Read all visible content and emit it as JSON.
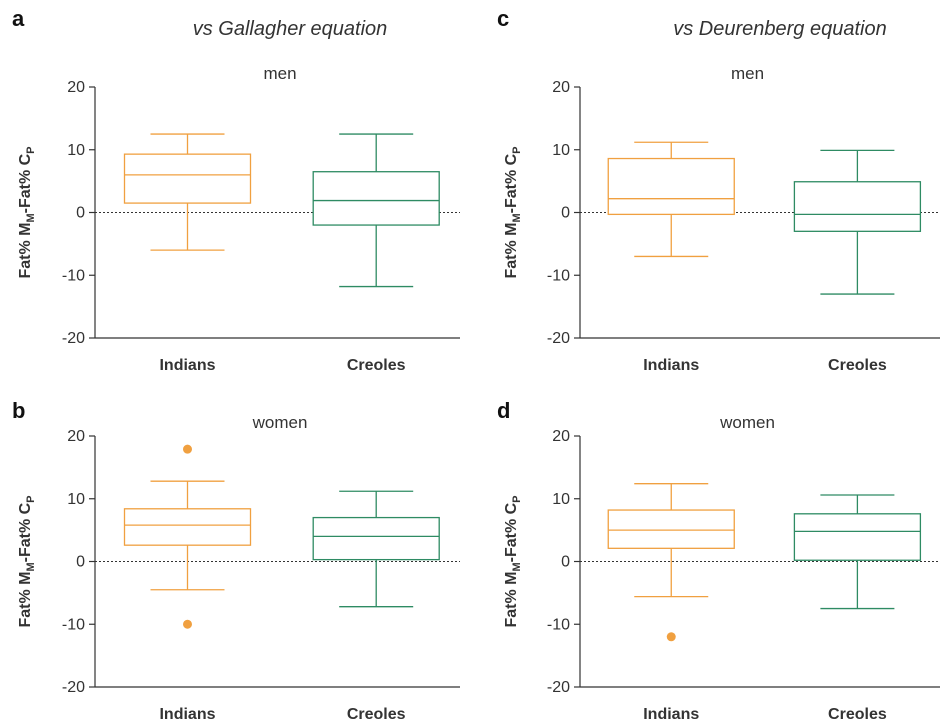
{
  "figure": {
    "column_titles": [
      "vs Gallagher equation",
      "vs Deurenberg equation"
    ],
    "colors": {
      "Indians": "#f0a040",
      "Creoles": "#2e8b63",
      "axis": "#333333"
    }
  },
  "chart_data": [
    {
      "type": "box",
      "panel": "a",
      "title": "men",
      "ylabel": {
        "main": "Fat% M",
        "sub1": "M",
        "mid": "-Fat% C",
        "sub2": "P"
      },
      "ylim": [
        -20,
        20
      ],
      "yticks": [
        "-20",
        "-10",
        "0",
        "10",
        "20"
      ],
      "categories": [
        "Indians",
        "Creoles"
      ],
      "boxes": [
        {
          "name": "Indians",
          "whisker_low": -6,
          "q1": 1.5,
          "median": 6,
          "q3": 9.3,
          "whisker_high": 12.5,
          "outliers": []
        },
        {
          "name": "Creoles",
          "whisker_low": -11.8,
          "q1": -2,
          "median": 1.9,
          "q3": 6.5,
          "whisker_high": 12.5,
          "outliers": []
        }
      ]
    },
    {
      "type": "box",
      "panel": "b",
      "title": "women",
      "ylabel": {
        "main": "Fat% M",
        "sub1": "M",
        "mid": "-Fat% C",
        "sub2": "P"
      },
      "ylim": [
        -20,
        20
      ],
      "yticks": [
        "-20",
        "-10",
        "0",
        "10",
        "20"
      ],
      "categories": [
        "Indians",
        "Creoles"
      ],
      "boxes": [
        {
          "name": "Indians",
          "whisker_low": -4.5,
          "q1": 2.6,
          "median": 5.8,
          "q3": 8.4,
          "whisker_high": 12.8,
          "outliers": [
            17.9,
            -10
          ]
        },
        {
          "name": "Creoles",
          "whisker_low": -7.2,
          "q1": 0.3,
          "median": 4,
          "q3": 7,
          "whisker_high": 11.2,
          "outliers": []
        }
      ]
    },
    {
      "type": "box",
      "panel": "c",
      "title": "men",
      "ylabel": {
        "main": "Fat% M",
        "sub1": "M",
        "mid": "-Fat% C",
        "sub2": "P"
      },
      "ylim": [
        -20,
        20
      ],
      "yticks": [
        "-20",
        "-10",
        "0",
        "10",
        "20"
      ],
      "categories": [
        "Indians",
        "Creoles"
      ],
      "boxes": [
        {
          "name": "Indians",
          "whisker_low": -7,
          "q1": -0.3,
          "median": 2.2,
          "q3": 8.6,
          "whisker_high": 11.2,
          "outliers": []
        },
        {
          "name": "Creoles",
          "whisker_low": -13,
          "q1": -3,
          "median": -0.3,
          "q3": 4.9,
          "whisker_high": 9.9,
          "outliers": []
        }
      ]
    },
    {
      "type": "box",
      "panel": "d",
      "title": "women",
      "ylabel": {
        "main": "Fat% M",
        "sub1": "M",
        "mid": "-Fat% C",
        "sub2": "P"
      },
      "ylim": [
        -20,
        20
      ],
      "yticks": [
        "-20",
        "-10",
        "0",
        "10",
        "20"
      ],
      "categories": [
        "Indians",
        "Creoles"
      ],
      "boxes": [
        {
          "name": "Indians",
          "whisker_low": -5.6,
          "q1": 2.1,
          "median": 5,
          "q3": 8.2,
          "whisker_high": 12.4,
          "outliers": [
            -12
          ]
        },
        {
          "name": "Creoles",
          "whisker_low": -7.5,
          "q1": 0.2,
          "median": 4.8,
          "q3": 7.6,
          "whisker_high": 10.6,
          "outliers": []
        }
      ]
    }
  ]
}
